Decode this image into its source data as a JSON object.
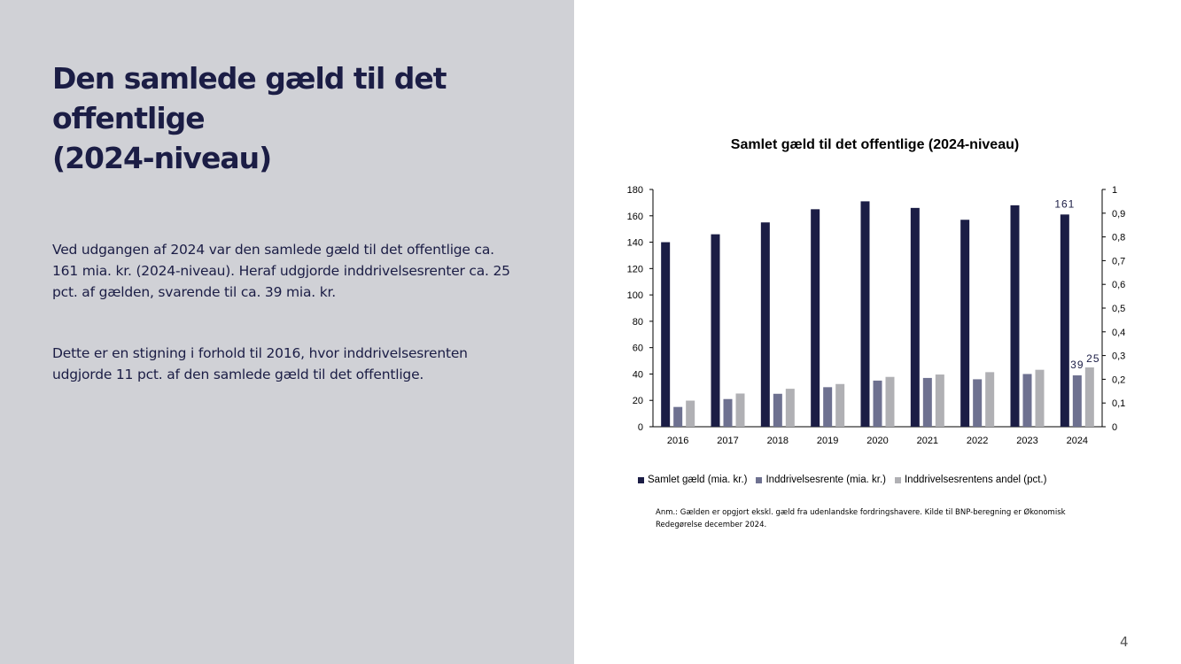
{
  "slide": {
    "title_line1": "Den samlede gæld til det offentlige",
    "title_line2": "(2024-niveau)",
    "paragraph1": "Ved udgangen af 2024 var den samlede gæld til det offentlige ca. 161 mia. kr. (2024-niveau). Heraf udgjorde inddrivelsesrenter ca. 25 pct. af gælden, svarende til ca. 39 mia. kr.",
    "paragraph2": "Dette er en stigning i forhold til 2016, hvor inddrivelsesrenten udgjorde 11 pct. af den samlede gæld til det offentlige.",
    "page_number": "4",
    "note": "Anm.: Gælden er opgjort ekskl. gæld fra udenlandske fordringshavere. Kilde til BNP-beregning er Økonomisk Redegørelse december 2024."
  },
  "chart_data": {
    "type": "bar",
    "title": "Samlet gæld til det offentlige (2024-niveau)",
    "categories": [
      "2016",
      "2017",
      "2018",
      "2019",
      "2020",
      "2021",
      "2022",
      "2023",
      "2024"
    ],
    "series": [
      {
        "name": "Samlet gæld (mia. kr.)",
        "axis": "left",
        "color": "#1b1d45",
        "values": [
          140,
          146,
          155,
          165,
          171,
          166,
          157,
          168,
          161
        ]
      },
      {
        "name": "Inddrivelsesrente (mia. kr.)",
        "axis": "left",
        "color": "#6e7190",
        "values": [
          15,
          21,
          25,
          30,
          35,
          37,
          36,
          40,
          39
        ]
      },
      {
        "name": "Inddrivelsesrentens andel (pct.)",
        "axis": "right",
        "color": "#b0b0b4",
        "values": [
          0.11,
          0.14,
          0.16,
          0.18,
          0.21,
          0.22,
          0.23,
          0.24,
          0.25
        ]
      }
    ],
    "y_left": {
      "min": 0,
      "max": 180,
      "ticks": [
        "0",
        "20",
        "40",
        "60",
        "80",
        "100",
        "120",
        "140",
        "160",
        "180"
      ]
    },
    "y_right": {
      "min": 0,
      "max": 1,
      "ticks": [
        "0",
        "0,1",
        "0,2",
        "0,3",
        "0,4",
        "0,5",
        "0,6",
        "0,7",
        "0,8",
        "0,9",
        "1"
      ]
    },
    "data_labels": [
      {
        "series": 0,
        "index": 8,
        "text": "161"
      },
      {
        "series": 1,
        "index": 8,
        "text": "39"
      },
      {
        "series": 2,
        "index": 8,
        "text": "25"
      }
    ],
    "legend_position": "bottom"
  }
}
